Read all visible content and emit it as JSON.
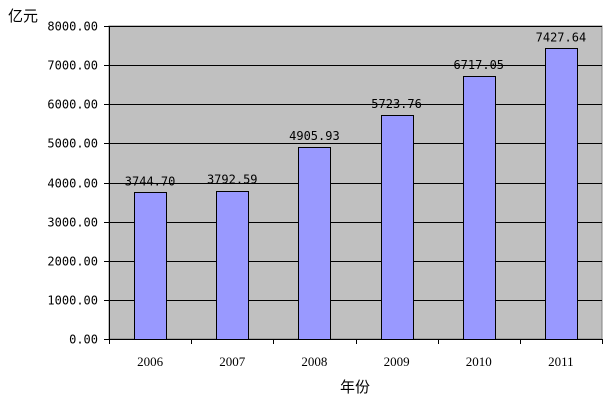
{
  "chart_data": {
    "type": "bar",
    "categories": [
      "2006",
      "2007",
      "2008",
      "2009",
      "2010",
      "2011"
    ],
    "values": [
      3744.7,
      3792.59,
      4905.93,
      5723.76,
      6717.05,
      7427.64
    ],
    "data_labels": [
      "3744.70",
      "3792.59",
      "4905.93",
      "5723.76",
      "6717.05",
      "7427.64"
    ],
    "title": "",
    "xlabel": "年份",
    "ylabel": "亿元",
    "ylim": [
      0,
      8000
    ],
    "yticks": [
      0,
      1000,
      2000,
      3000,
      4000,
      5000,
      6000,
      7000,
      8000
    ],
    "ytick_labels": [
      "0.00",
      "1000.00",
      "2000.00",
      "3000.00",
      "4000.00",
      "5000.00",
      "6000.00",
      "7000.00",
      "8000.00"
    ],
    "grid": true,
    "legend": "none",
    "colors": {
      "bar_fill": "#9999ff",
      "bar_stroke": "#000000",
      "plot_background": "#c0c0c0",
      "grid": "#000000"
    }
  }
}
